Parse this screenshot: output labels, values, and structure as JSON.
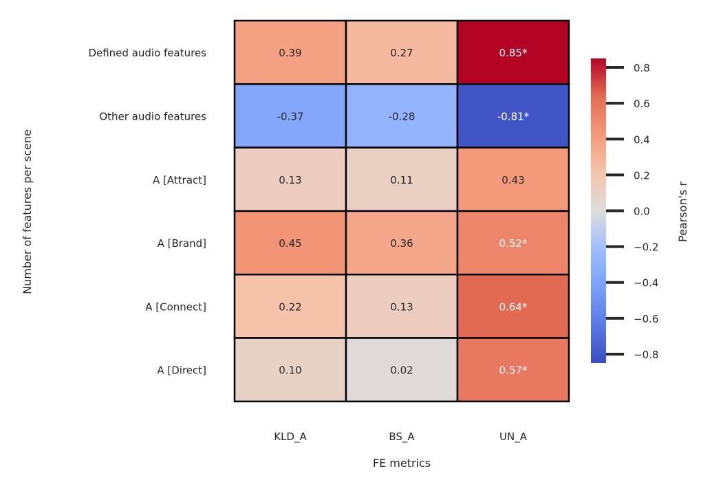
{
  "chart_data": {
    "type": "heatmap",
    "xlabel": "FE metrics",
    "ylabel": "Number of features per scene",
    "columns": [
      "KLD_A",
      "BS_A",
      "UN_A"
    ],
    "rows": [
      "Defined audio features",
      "Other audio features",
      "A [Attract]",
      "A [Brand]",
      "A [Connect]",
      "A [Direct]"
    ],
    "values": [
      [
        0.39,
        0.27,
        0.85
      ],
      [
        -0.37,
        -0.28,
        -0.81
      ],
      [
        0.13,
        0.11,
        0.43
      ],
      [
        0.45,
        0.36,
        0.52
      ],
      [
        0.22,
        0.13,
        0.64
      ],
      [
        0.1,
        0.02,
        0.57
      ]
    ],
    "annotations": [
      [
        "0.39",
        "0.27",
        "0.85*"
      ],
      [
        "-0.37",
        "-0.28",
        "-0.81*"
      ],
      [
        "0.13",
        "0.11",
        "0.43"
      ],
      [
        "0.45",
        "0.36",
        "0.52*"
      ],
      [
        "0.22",
        "0.13",
        "0.64*"
      ],
      [
        "0.10",
        "0.02",
        "0.57*"
      ]
    ],
    "colorbar": {
      "label": "Pearson's r",
      "vmin": -0.85,
      "vmax": 0.85,
      "ticks": [
        0.8,
        0.6,
        0.4,
        0.2,
        0.0,
        -0.2,
        -0.4,
        -0.6,
        -0.8
      ],
      "tick_labels": [
        "0.8",
        "0.6",
        "0.4",
        "0.2",
        "0.0",
        "−0.2",
        "−0.4",
        "−0.6",
        "−0.8"
      ],
      "colormap": "coolwarm"
    },
    "grid": false
  }
}
